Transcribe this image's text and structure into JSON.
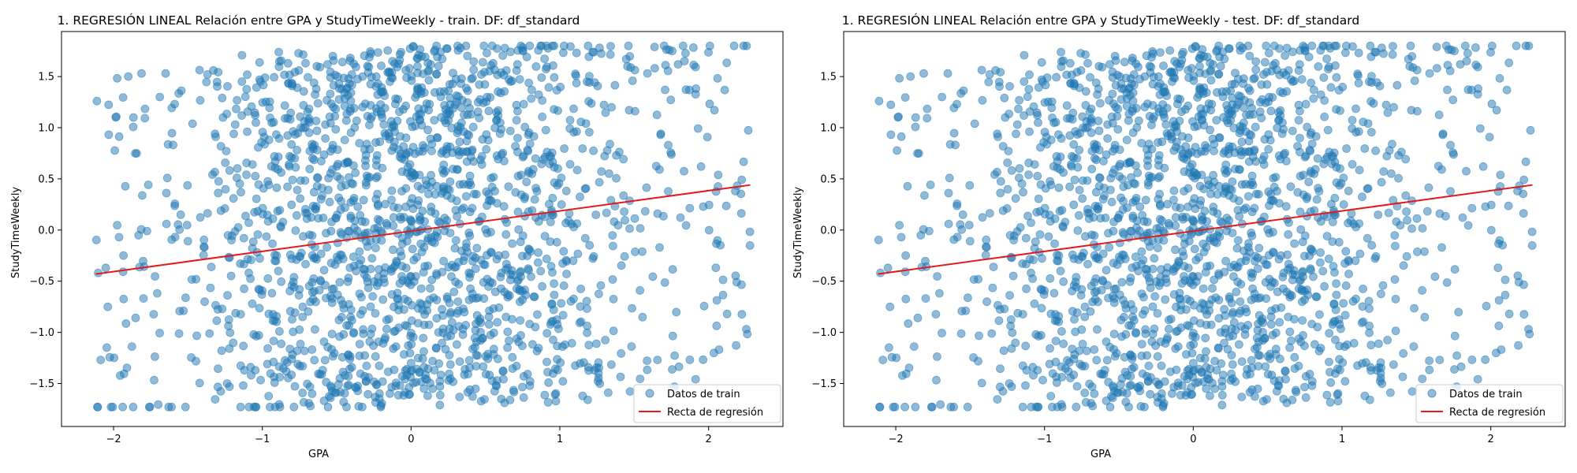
{
  "colors": {
    "points": "#1f77b4",
    "line": "#e41a1c",
    "axes": "#000000",
    "legend_border": "#cccccc"
  },
  "chart_data": [
    {
      "type": "scatter",
      "title": "1. REGRESIÓN LINEAL Relación entre GPA y StudyTimeWeekly - train. DF: df_standard",
      "xlabel": "GPA",
      "ylabel": "StudyTimeWeekly",
      "xlim": [
        -2.35,
        2.5
      ],
      "ylim": [
        -1.92,
        1.94
      ],
      "xticks": [
        -2,
        -1,
        0,
        1,
        2
      ],
      "xtick_labels": [
        "−2",
        "−1",
        "0",
        "1",
        "2"
      ],
      "yticks": [
        -1.5,
        -1.0,
        -0.5,
        0.0,
        0.5,
        1.0,
        1.5
      ],
      "ytick_labels": [
        "−1.5",
        "−1.0",
        "−0.5",
        "0.0",
        "0.5",
        "1.0",
        "1.5"
      ],
      "grid": false,
      "legend_position": "lower-right",
      "scatter_series": {
        "name": "Datos de train",
        "point_count": 1900,
        "x_range": [
          -2.12,
          2.28
        ],
        "y_range": [
          -1.73,
          1.8
        ],
        "trend_slope": 0.2,
        "sample_seed": 7
      },
      "regression_line": {
        "name": "Recta de regresión",
        "x": [
          -2.12,
          2.28
        ],
        "y": [
          -0.43,
          0.44
        ]
      }
    },
    {
      "type": "scatter",
      "title": "1. REGRESIÓN LINEAL Relación entre GPA y StudyTimeWeekly - test. DF: df_standard",
      "xlabel": "GPA",
      "ylabel": "StudyTimeWeekly",
      "xlim": [
        -2.35,
        2.5
      ],
      "ylim": [
        -1.92,
        1.94
      ],
      "xticks": [
        -2,
        -1,
        0,
        1,
        2
      ],
      "xtick_labels": [
        "−2",
        "−1",
        "0",
        "1",
        "2"
      ],
      "yticks": [
        -1.5,
        -1.0,
        -0.5,
        0.0,
        0.5,
        1.0,
        1.5
      ],
      "ytick_labels": [
        "−1.5",
        "−1.0",
        "−0.5",
        "0.0",
        "0.5",
        "1.0",
        "1.5"
      ],
      "grid": false,
      "legend_position": "lower-right",
      "scatter_series": {
        "name": "Datos de train",
        "point_count": 1900,
        "x_range": [
          -2.12,
          2.28
        ],
        "y_range": [
          -1.73,
          1.8
        ],
        "trend_slope": 0.2,
        "sample_seed": 7
      },
      "regression_line": {
        "name": "Recta de regresión",
        "x": [
          -2.12,
          2.28
        ],
        "y": [
          -0.43,
          0.44
        ]
      }
    }
  ]
}
